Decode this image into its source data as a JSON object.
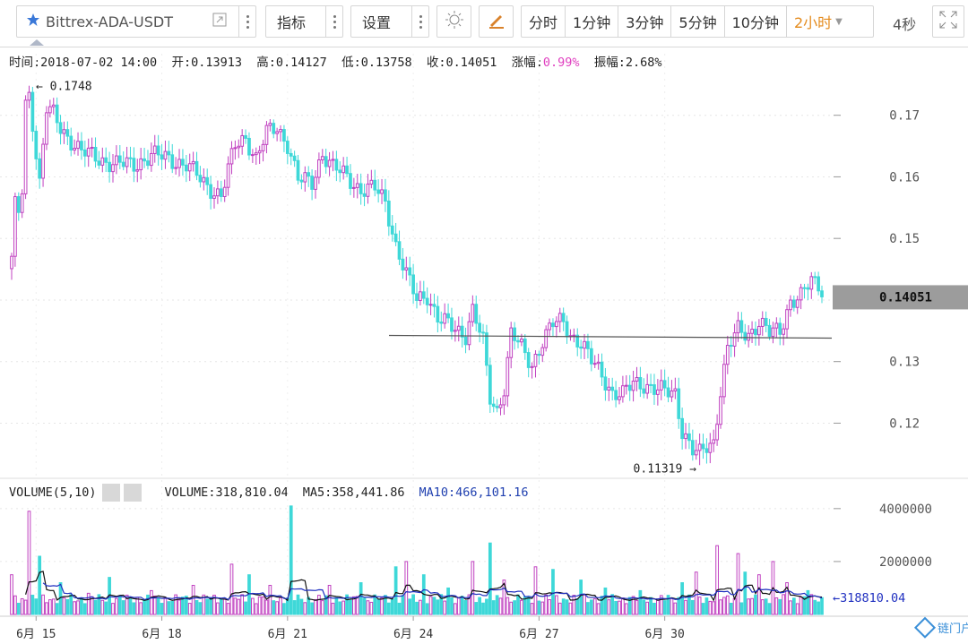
{
  "toolbar": {
    "symbol": "Bittrex-ADA-USDT",
    "indicators_label": "指标",
    "settings_label": "设置",
    "periods": [
      "分时",
      "1分钟",
      "3分钟",
      "5分钟",
      "10分钟",
      "2小时"
    ],
    "active_period": "2小时",
    "refresh_label": "4秒"
  },
  "info": {
    "time_label": "时间:",
    "time": "2018-07-02 14:00",
    "open_label": "开:",
    "open": "0.13913",
    "high_label": "高:",
    "high": "0.14127",
    "low_label": "低:",
    "low": "0.13758",
    "close_label": "收:",
    "close": "0.14051",
    "change_label": "涨幅:",
    "change": "0.99%",
    "amplitude_label": "振幅:",
    "amplitude": "2.68%"
  },
  "volume_info": {
    "title": "VOLUME(5,10)",
    "volume_label": "VOLUME:",
    "volume": "318,810.04",
    "ma5_label": "MA5:",
    "ma5": "358,441.86",
    "ma10_label": "MA10:",
    "ma10": "466,101.16"
  },
  "chart_data": {
    "type": "candlestick",
    "price_axis": {
      "ticks": [
        "0.17",
        "0.16",
        "0.15",
        "0.14",
        "0.13",
        "0.12"
      ],
      "ylim": [
        0.1125,
        0.1765
      ]
    },
    "volume_axis": {
      "ticks": [
        "4000000",
        "2000000"
      ],
      "ylim": [
        0,
        4400000
      ]
    },
    "x_labels": [
      "6月 15",
      "6月 18",
      "6月 21",
      "6月 24",
      "6月 27",
      "6月 30"
    ],
    "high_annotation": "0.1748",
    "low_annotation": "0.11319",
    "last_price_label": "0.14051",
    "last_volume_label": "318810.04",
    "horizontal_line_price": 0.1341,
    "colors": {
      "up": "#c040c0",
      "down": "#3ed8d8",
      "ma5": "#111111",
      "ma10": "#2030c0"
    },
    "anchors": [
      [
        0,
        0.1465
      ],
      [
        1,
        0.155
      ],
      [
        2,
        0.154
      ],
      [
        3,
        0.158
      ],
      [
        4,
        0.172
      ],
      [
        5,
        0.1735
      ],
      [
        6,
        0.169
      ],
      [
        8,
        0.159
      ],
      [
        10,
        0.171
      ],
      [
        12,
        0.17
      ],
      [
        14,
        0.168
      ],
      [
        17,
        0.166
      ],
      [
        20,
        0.164
      ],
      [
        25,
        0.163
      ],
      [
        30,
        0.162
      ],
      [
        35,
        0.162
      ],
      [
        40,
        0.1635
      ],
      [
        45,
        0.163
      ],
      [
        50,
        0.162
      ],
      [
        55,
        0.159
      ],
      [
        60,
        0.157
      ],
      [
        64,
        0.165
      ],
      [
        67,
        0.1665
      ],
      [
        70,
        0.163
      ],
      [
        73,
        0.167
      ],
      [
        76,
        0.168
      ],
      [
        79,
        0.1655
      ],
      [
        82,
        0.1595
      ],
      [
        86,
        0.159
      ],
      [
        89,
        0.164
      ],
      [
        92,
        0.1615
      ],
      [
        96,
        0.16
      ],
      [
        100,
        0.158
      ],
      [
        104,
        0.158
      ],
      [
        107,
        0.156
      ],
      [
        110,
        0.149
      ],
      [
        113,
        0.144
      ],
      [
        116,
        0.14
      ],
      [
        119,
        0.141
      ],
      [
        122,
        0.137
      ],
      [
        126,
        0.1355
      ],
      [
        130,
        0.1345
      ],
      [
        132,
        0.1385
      ],
      [
        135,
        0.133
      ],
      [
        137,
        0.124
      ],
      [
        139,
        0.122
      ],
      [
        141,
        0.126
      ],
      [
        143,
        0.1345
      ],
      [
        145,
        0.133
      ],
      [
        147,
        0.131
      ],
      [
        149,
        0.1295
      ],
      [
        152,
        0.1335
      ],
      [
        155,
        0.136
      ],
      [
        158,
        0.1365
      ],
      [
        160,
        0.1345
      ],
      [
        163,
        0.133
      ],
      [
        166,
        0.13
      ],
      [
        169,
        0.128
      ],
      [
        172,
        0.125
      ],
      [
        175,
        0.1245
      ],
      [
        178,
        0.1265
      ],
      [
        181,
        0.1265
      ],
      [
        184,
        0.1255
      ],
      [
        187,
        0.125
      ],
      [
        190,
        0.125
      ],
      [
        192,
        0.119
      ],
      [
        195,
        0.1155
      ],
      [
        197,
        0.1148
      ],
      [
        199,
        0.1162
      ],
      [
        201,
        0.117
      ],
      [
        203,
        0.1255
      ],
      [
        205,
        0.132
      ],
      [
        208,
        0.135
      ],
      [
        211,
        0.1345
      ],
      [
        214,
        0.1365
      ],
      [
        217,
        0.1345
      ],
      [
        220,
        0.135
      ],
      [
        223,
        0.14
      ],
      [
        226,
        0.1405
      ],
      [
        229,
        0.143
      ],
      [
        231,
        0.1425
      ],
      [
        232,
        0.1405
      ]
    ],
    "volume_spikes": [
      [
        0,
        1500000
      ],
      [
        5,
        3900000
      ],
      [
        8,
        2200000
      ],
      [
        14,
        1200000
      ],
      [
        22,
        800000
      ],
      [
        28,
        1400000
      ],
      [
        40,
        900000
      ],
      [
        52,
        1100000
      ],
      [
        63,
        1900000
      ],
      [
        68,
        1500000
      ],
      [
        74,
        1100000
      ],
      [
        80,
        4100000
      ],
      [
        91,
        1100000
      ],
      [
        100,
        1200000
      ],
      [
        110,
        1800000
      ],
      [
        113,
        2000000
      ],
      [
        118,
        1500000
      ],
      [
        125,
        1000000
      ],
      [
        132,
        2000000
      ],
      [
        137,
        2700000
      ],
      [
        141,
        1300000
      ],
      [
        150,
        1800000
      ],
      [
        155,
        1700000
      ],
      [
        163,
        1300000
      ],
      [
        170,
        1000000
      ],
      [
        180,
        900000
      ],
      [
        192,
        1200000
      ],
      [
        196,
        1600000
      ],
      [
        202,
        2600000
      ],
      [
        208,
        2300000
      ],
      [
        210,
        1600000
      ],
      [
        214,
        1500000
      ],
      [
        218,
        2000000
      ],
      [
        222,
        1200000
      ],
      [
        228,
        900000
      ]
    ]
  }
}
